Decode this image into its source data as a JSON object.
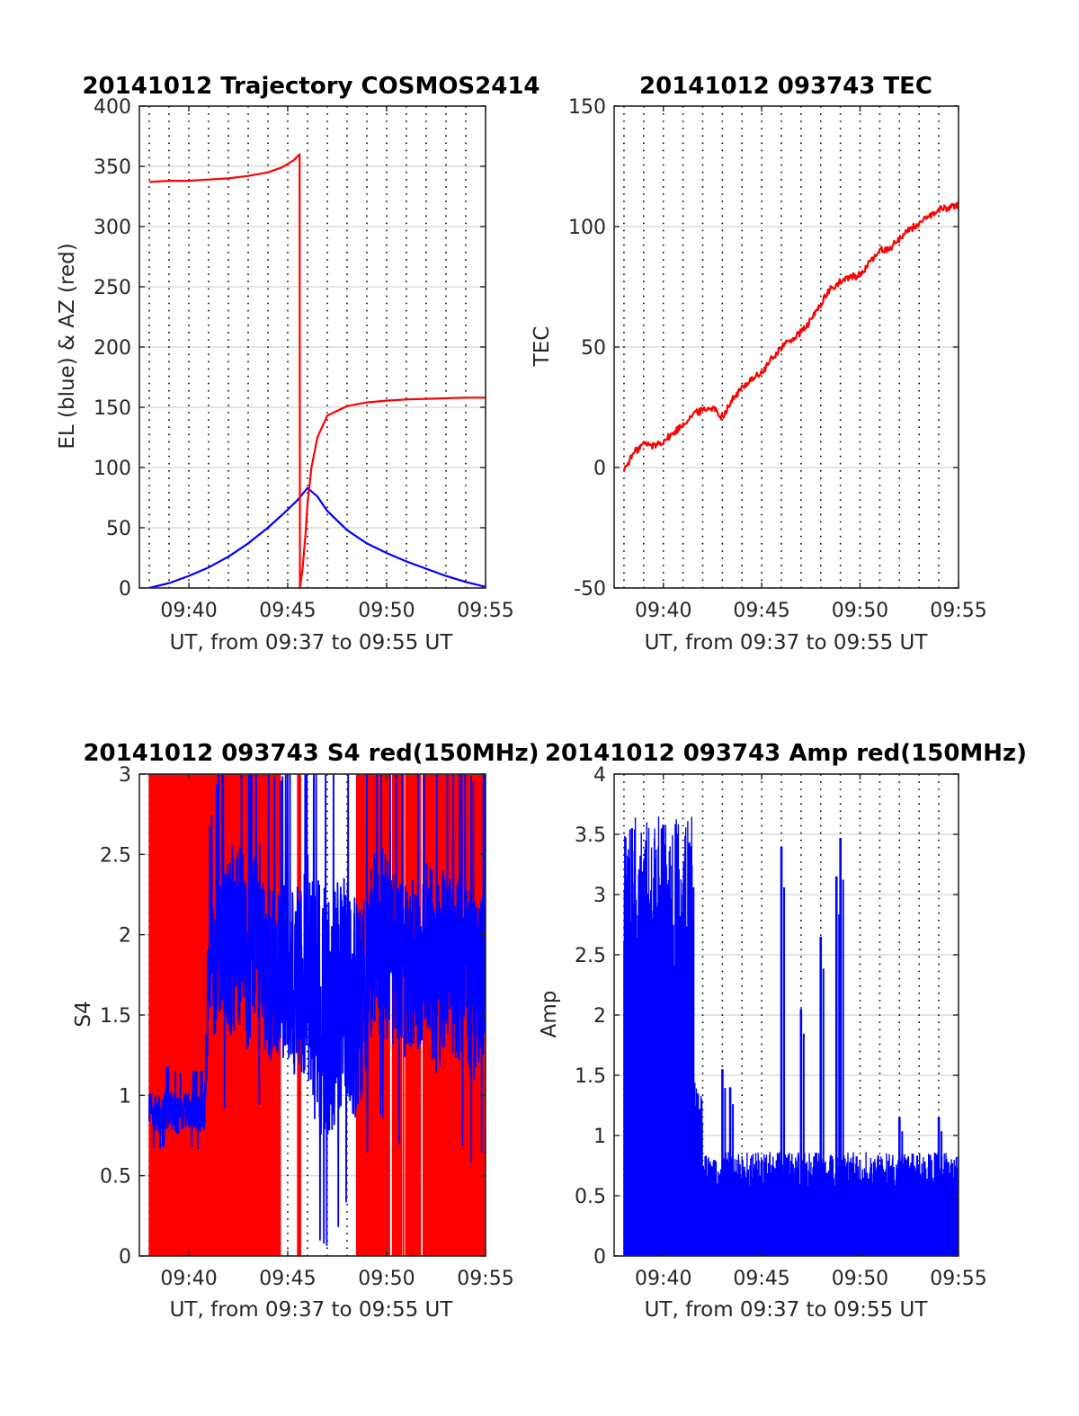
{
  "chart_data": [
    {
      "type": "line",
      "title": "20141012 Trajectory COSMOS2414",
      "xlabel": "UT, from 09:37 to 09:55 UT",
      "ylabel": "EL (blue) & AZ (red)",
      "xlim": [
        9.625,
        9.9167
      ],
      "ylim": [
        0,
        400
      ],
      "xticks": [
        9.6667,
        9.75,
        9.8333,
        9.9167
      ],
      "xtick_labels": [
        "09:40",
        "09:45",
        "09:50",
        "09:55"
      ],
      "yticks": [
        0,
        50,
        100,
        150,
        200,
        250,
        300,
        350,
        400
      ],
      "ytick_labels": [
        "0",
        "50",
        "100",
        "150",
        "200",
        "250",
        "300",
        "350",
        "400"
      ],
      "grid": true,
      "minute_gridlines": true,
      "series": [
        {
          "name": "EL",
          "color": "#0000ff",
          "x": [
            9.6333,
            9.65,
            9.6667,
            9.6833,
            9.7,
            9.7167,
            9.7333,
            9.75,
            9.7583,
            9.7667,
            9.775,
            9.7833,
            9.8,
            9.8167,
            9.8333,
            9.85,
            9.8667,
            9.8833,
            9.9,
            9.9167
          ],
          "y": [
            0,
            4,
            10,
            17,
            26,
            37,
            50,
            65,
            73,
            83,
            76,
            64,
            48,
            37,
            29,
            22,
            16,
            10,
            5,
            1
          ]
        },
        {
          "name": "AZ",
          "color": "#ff0000",
          "x": [
            9.6333,
            9.65,
            9.6667,
            9.6833,
            9.7,
            9.7167,
            9.7333,
            9.745,
            9.755,
            9.76,
            9.7603,
            9.7625,
            9.765,
            9.7667,
            9.77,
            9.775,
            9.7833,
            9.8,
            9.8167,
            9.8333,
            9.85,
            9.8667,
            9.8833,
            9.9,
            9.9167
          ],
          "y": [
            337,
            338,
            338,
            339,
            340,
            342,
            345,
            349,
            355,
            360,
            0,
            16,
            45,
            70,
            100,
            125,
            143,
            151,
            154,
            155.5,
            156.5,
            157,
            157.5,
            158,
            158
          ]
        }
      ]
    },
    {
      "type": "line",
      "title": "20141012 093743 TEC",
      "xlabel": "UT, from 09:37 to 09:55 UT",
      "ylabel": "TEC",
      "xlim": [
        9.625,
        9.9167
      ],
      "ylim": [
        -50,
        150
      ],
      "xticks": [
        9.6667,
        9.75,
        9.8333,
        9.9167
      ],
      "xtick_labels": [
        "09:40",
        "09:45",
        "09:50",
        "09:55"
      ],
      "yticks": [
        -50,
        0,
        50,
        100,
        150
      ],
      "ytick_labels": [
        "-50",
        "0",
        "50",
        "100",
        "150"
      ],
      "grid": true,
      "minute_gridlines": true,
      "series": [
        {
          "name": "TEC",
          "color": "#ff0000",
          "x": [
            9.6333,
            9.6417,
            9.65,
            9.6583,
            9.6667,
            9.675,
            9.6833,
            9.6917,
            9.7,
            9.7083,
            9.7167,
            9.725,
            9.7333,
            9.7417,
            9.75,
            9.7583,
            9.7667,
            9.775,
            9.7833,
            9.7917,
            9.8,
            9.8083,
            9.8167,
            9.825,
            9.8333,
            9.8417,
            9.85,
            9.8583,
            9.8667,
            9.875,
            9.8833,
            9.8917,
            9.9,
            9.9083,
            9.9167
          ],
          "y": [
            -1,
            6,
            10,
            9,
            11,
            14,
            18,
            22,
            24,
            25,
            21,
            28,
            33,
            37,
            39,
            45,
            50,
            53,
            56,
            61,
            68,
            74,
            77,
            79,
            80,
            85,
            90,
            91,
            95,
            99,
            101,
            104,
            107,
            108,
            109
          ]
        }
      ]
    },
    {
      "type": "line",
      "title": "20141012 093743 S4 red(150MHz)",
      "xlabel": "UT, from 09:37 to 09:55 UT",
      "ylabel": "S4",
      "xlim": [
        9.625,
        9.9167
      ],
      "ylim": [
        0,
        3
      ],
      "xticks": [
        9.6667,
        9.75,
        9.8333,
        9.9167
      ],
      "xtick_labels": [
        "09:40",
        "09:45",
        "09:50",
        "09:55"
      ],
      "yticks": [
        0,
        0.5,
        1,
        1.5,
        2,
        2.5,
        3
      ],
      "ytick_labels": [
        "0",
        "0.5",
        "1",
        "1.5",
        "2",
        "2.5",
        "3"
      ],
      "grid": true,
      "minute_gridlines": true,
      "series": [
        {
          "name": "S4 red",
          "color": "#ff0000",
          "noise": {
            "x_start": 9.6333,
            "x_end": 9.9167,
            "low": 0,
            "high": 3,
            "gaps": [
              [
                9.744,
                9.758
              ],
              [
                9.761,
                9.808
              ],
              [
                9.835,
                9.838
              ],
              [
                9.846,
                9.849
              ],
              [
                9.862,
                9.864
              ]
            ]
          }
        },
        {
          "name": "S4 blue",
          "color": "#0000ff",
          "x": [
            9.6333,
            9.6417,
            9.65,
            9.6583,
            9.6667,
            9.675,
            9.68,
            9.6833,
            9.6917,
            9.7,
            9.7083,
            9.7167,
            9.725,
            9.7333,
            9.7417,
            9.75,
            9.7583,
            9.7667,
            9.775,
            9.7833,
            9.7917,
            9.8,
            9.8083,
            9.8167,
            9.825,
            9.8333,
            9.8417,
            9.85,
            9.8583,
            9.8667,
            9.875,
            9.8833,
            9.8917,
            9.9,
            9.9083,
            9.9167
          ],
          "y": [
            0.9,
            0.88,
            0.92,
            0.87,
            0.9,
            0.88,
            0.9,
            1.75,
            1.9,
            1.95,
            2.0,
            1.85,
            2.05,
            1.8,
            1.7,
            1.75,
            1.7,
            1.8,
            1.55,
            1.5,
            1.6,
            1.7,
            1.5,
            1.8,
            2.0,
            1.9,
            1.75,
            1.85,
            1.8,
            1.95,
            1.7,
            1.85,
            1.8,
            1.75,
            1.6,
            1.8
          ],
          "spread": [
            0.12,
            0.12,
            0.12,
            0.12,
            0.12,
            0.12,
            0.12,
            0.4,
            0.5,
            0.6,
            0.6,
            0.6,
            0.6,
            0.6,
            0.55,
            0.6,
            0.65,
            0.7,
            0.8,
            0.8,
            0.8,
            0.75,
            0.7,
            0.65,
            0.6,
            0.6,
            0.6,
            0.6,
            0.6,
            0.6,
            0.6,
            0.6,
            0.6,
            0.6,
            0.6,
            0.6
          ]
        }
      ]
    },
    {
      "type": "bar",
      "title": "20141012 093743 Amp red(150MHz)",
      "xlabel": "UT, from 09:37 to 09:55 UT",
      "ylabel": "Amp",
      "xlim": [
        9.625,
        9.9167
      ],
      "ylim": [
        0,
        4
      ],
      "xticks": [
        9.6667,
        9.75,
        9.8333,
        9.9167
      ],
      "xtick_labels": [
        "09:40",
        "09:45",
        "09:50",
        "09:55"
      ],
      "yticks": [
        0,
        0.5,
        1,
        1.5,
        2,
        2.5,
        3,
        3.5,
        4
      ],
      "ytick_labels": [
        "0",
        "0.5",
        "1",
        "1.5",
        "2",
        "2.5",
        "3",
        "3.5",
        "4"
      ],
      "grid": true,
      "minute_gridlines": true,
      "series": [
        {
          "name": "Amp",
          "color": "#0000ff",
          "baseline_segments": [
            {
              "x_start": 9.6333,
              "x_end": 9.6917,
              "level": 3.05
            },
            {
              "x_start": 9.6917,
              "x_end": 9.7,
              "level": 1.2
            },
            {
              "x_start": 9.7,
              "x_end": 9.9167,
              "level": 0.72
            }
          ],
          "peaks": [
            {
              "x": 9.64,
              "y": 3.55
            },
            {
              "x": 9.6667,
              "y": 3.58
            },
            {
              "x": 9.69,
              "y": 3.4
            },
            {
              "x": 9.7167,
              "y": 1.55
            },
            {
              "x": 9.7233,
              "y": 1.4
            },
            {
              "x": 9.7667,
              "y": 3.4
            },
            {
              "x": 9.7833,
              "y": 2.05
            },
            {
              "x": 9.8,
              "y": 2.65
            },
            {
              "x": 9.8167,
              "y": 3.47
            },
            {
              "x": 9.8133,
              "y": 3.15
            },
            {
              "x": 9.8667,
              "y": 1.15
            },
            {
              "x": 9.9,
              "y": 1.15
            }
          ]
        }
      ]
    }
  ]
}
